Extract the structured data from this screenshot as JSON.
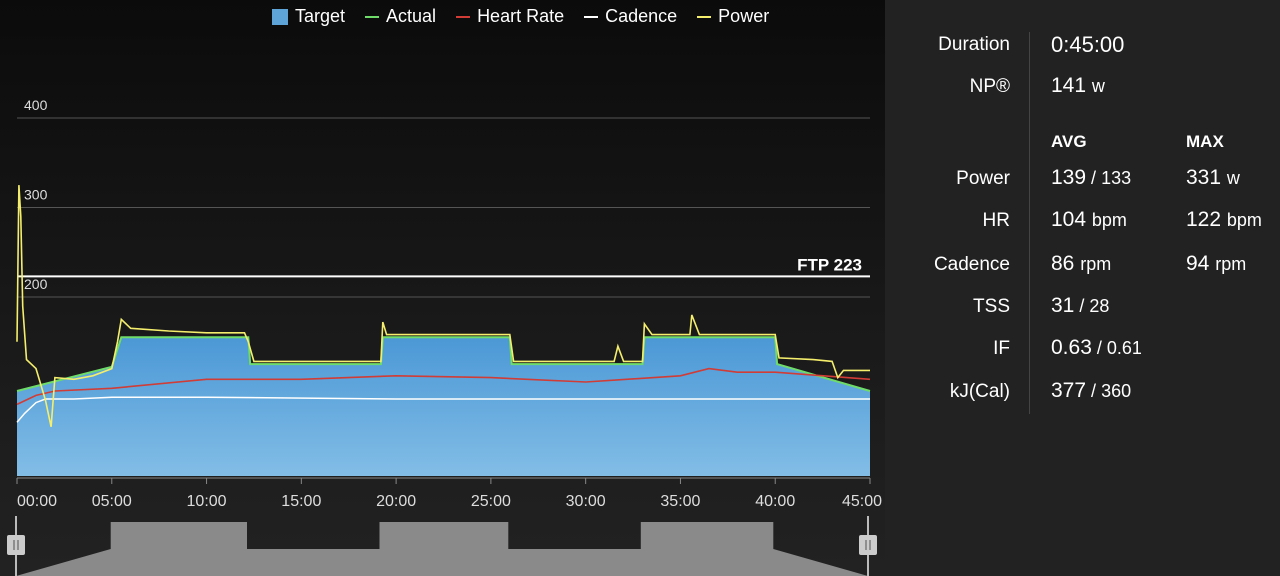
{
  "chart_data": {
    "type": "area",
    "legend": [
      "Target",
      "Actual",
      "Heart Rate",
      "Cadence",
      "Power"
    ],
    "legend_colors": [
      "#5ea4d8",
      "#6fdc6a",
      "#d13c36",
      "#ffffff",
      "#f4ee6c"
    ],
    "x_ticks": [
      "00:00",
      "05:00",
      "10:00",
      "15:00",
      "20:00",
      "25:00",
      "30:00",
      "35:00",
      "40:00",
      "45:00"
    ],
    "y_ticks": [
      {
        "value": 200,
        "label": "200"
      },
      {
        "value": 300,
        "label": "300"
      },
      {
        "value": 400,
        "label": "400"
      }
    ],
    "ylim": [
      0,
      400
    ],
    "xlim_min": [
      0,
      45
    ],
    "ftp": {
      "label": "FTP 223",
      "value": 223
    },
    "target": {
      "x": [
        0,
        5,
        5.5,
        12.2,
        12.3,
        19.2,
        19.3,
        26,
        26.1,
        33,
        33.1,
        40,
        40.1,
        45
      ],
      "y": [
        95,
        122,
        155,
        155,
        125,
        125,
        155,
        155,
        125,
        125,
        155,
        155,
        125,
        95
      ]
    },
    "power": {
      "x": [
        0,
        0.1,
        0.2,
        0.3,
        0.5,
        1,
        1.5,
        1.8,
        2,
        3,
        4,
        5,
        5.3,
        5.5,
        6,
        8,
        10,
        12,
        12.2,
        12.5,
        15,
        18,
        19.2,
        19.3,
        19.5,
        22,
        25,
        26,
        26.2,
        28,
        30,
        31.5,
        31.7,
        32,
        33,
        33.1,
        33.5,
        35,
        35.5,
        35.6,
        36,
        38,
        40,
        40.2,
        42,
        43,
        43.3,
        43.6,
        45
      ],
      "y": [
        150,
        325,
        290,
        190,
        130,
        120,
        85,
        55,
        110,
        108,
        112,
        120,
        150,
        175,
        165,
        162,
        160,
        160,
        150,
        128,
        128,
        128,
        128,
        172,
        158,
        158,
        158,
        158,
        128,
        128,
        128,
        128,
        145,
        128,
        128,
        170,
        158,
        158,
        158,
        180,
        158,
        158,
        158,
        132,
        130,
        128,
        110,
        118,
        118
      ]
    },
    "heart_rate": {
      "x": [
        0,
        1,
        2,
        5,
        10,
        15,
        20,
        25,
        30,
        35,
        36.5,
        38,
        40,
        45
      ],
      "y": [
        80,
        90,
        95,
        98,
        108,
        108,
        112,
        110,
        105,
        112,
        120,
        116,
        116,
        108
      ]
    },
    "cadence": {
      "x": [
        0,
        0.4,
        1,
        1.5,
        2,
        3,
        5,
        10,
        20,
        25,
        35,
        40,
        45
      ],
      "y": [
        60,
        70,
        82,
        86,
        86,
        86,
        88,
        88,
        86,
        86,
        86,
        86,
        86
      ]
    }
  },
  "stats": {
    "duration_label": "Duration",
    "duration_value": "0:45:00",
    "np_label": "NP®",
    "np_value": "141",
    "np_unit": "w",
    "avg_label": "AVG",
    "max_label": "MAX",
    "rows": [
      {
        "label": "Power",
        "avg": "139",
        "avg_sep": " / ",
        "avg_secondary": "133",
        "max": "331",
        "max_unit": "w"
      },
      {
        "label": "HR",
        "avg": "104",
        "avg_unit": "bpm",
        "max": "122",
        "max_unit": "bpm"
      },
      {
        "label": "Cadence",
        "avg": "86",
        "avg_unit": "rpm",
        "max": "94",
        "max_unit": "rpm"
      },
      {
        "label": "TSS",
        "avg": "31",
        "avg_sep": " / ",
        "avg_secondary": "28"
      },
      {
        "label": "IF",
        "avg": "0.63",
        "avg_sep": " / ",
        "avg_secondary": "0.61"
      },
      {
        "label": "kJ(Cal)",
        "avg": "377",
        "avg_sep": " / ",
        "avg_secondary": "360"
      }
    ]
  }
}
